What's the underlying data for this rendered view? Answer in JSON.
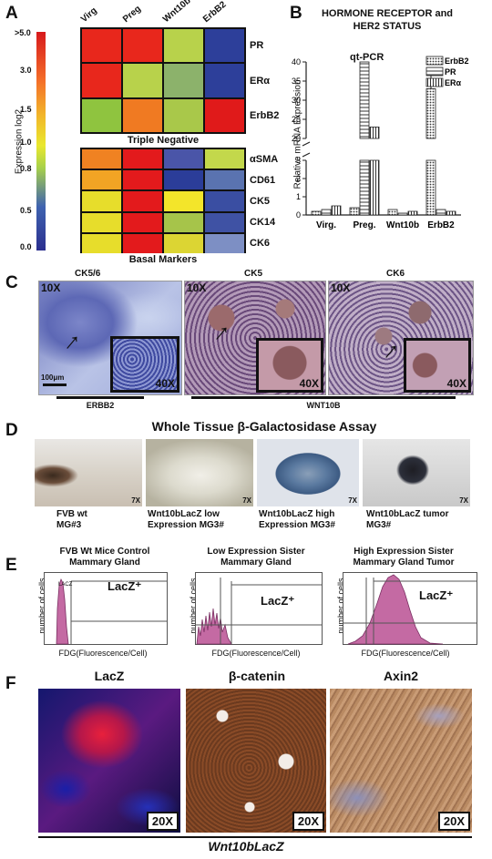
{
  "panel_labels": {
    "a": "A",
    "b": "B",
    "c": "C",
    "d": "D",
    "e": "E",
    "f": "F"
  },
  "panel_a": {
    "columns": [
      "Virg",
      "Preg",
      "Wnt10b",
      "ErbB2"
    ],
    "group1_rows": [
      "PR",
      "ERα",
      "ErbB2"
    ],
    "group1_title": "Triple Negative",
    "group2_rows": [
      "αSMA",
      "CD61",
      "CK5",
      "CK14",
      "CK6"
    ],
    "group2_title": "Basal Markers",
    "scale_label": "Expression log2",
    "scale_ticks": [
      ">5.0",
      "3.0",
      "1.5",
      "1.0",
      "0.8",
      "0.5",
      "0.0"
    ],
    "group1_colors": [
      [
        "#e8271c",
        "#e8271c",
        "#b8d24b",
        "#2d3f9a"
      ],
      [
        "#e8271c",
        "#b8d24b",
        "#8cb26b",
        "#2d3f9a"
      ],
      [
        "#8fc43f",
        "#f07a22",
        "#a9c84a",
        "#e01a1a"
      ]
    ],
    "group2_colors": [
      [
        "#f08222",
        "#e31a1c",
        "#4a55a8",
        "#c3d84b"
      ],
      [
        "#f2a424",
        "#e31a1c",
        "#2b3d99",
        "#5a73b0"
      ],
      [
        "#e7dd2b",
        "#e31a1c",
        "#f3e52a",
        "#3a4ea2"
      ],
      [
        "#e7dd2b",
        "#e31a1c",
        "#a6c44a",
        "#3f52a4"
      ],
      [
        "#e7dd2b",
        "#e31a1c",
        "#dcd533",
        "#7d8fc4"
      ]
    ]
  },
  "chart_data": {
    "type": "bar",
    "title": "HORMONE RECEPTOR and HER2 STATUS",
    "subtitle": "qt-PCR",
    "ylabel": "Relative mRNA Expression",
    "categories": [
      "Virg.",
      "Preg.",
      "Wnt10b",
      "ErbB2"
    ],
    "y_ticks": [
      "0",
      "1",
      "2",
      "3",
      "20",
      "25",
      "30",
      "35",
      "40"
    ],
    "axis_break": [
      3,
      20
    ],
    "ylim": [
      0,
      40
    ],
    "series": [
      {
        "name": "ErbB2",
        "values": [
          0.2,
          0.4,
          0.3,
          33
        ]
      },
      {
        "name": "PR",
        "values": [
          0.3,
          40,
          0.1,
          0.3
        ]
      },
      {
        "name": "ERα",
        "values": [
          0.5,
          23,
          0.2,
          0.2
        ]
      }
    ],
    "error_bar_erbb2": 5
  },
  "panel_c": {
    "titles": [
      "CK5/6",
      "CK5",
      "CK6"
    ],
    "mag_low": "10X",
    "mag_high": "40X",
    "scale_bar": "100μm",
    "group_erbb2": "ERBB2",
    "group_wnt10b": "WNT10B"
  },
  "panel_d": {
    "title": "Whole Tissue β-Galactosidase Assay",
    "mag": "7X",
    "captions": [
      [
        "FVB wt",
        "MG#3"
      ],
      [
        "Wnt10bLacZ low",
        "Expression MG3#"
      ],
      [
        "Wnt10bLacZ high",
        "Expression MG3#"
      ],
      [
        "Wnt10bLacZ tumor",
        "MG3#"
      ]
    ]
  },
  "panel_e": {
    "titles": [
      [
        "FVB Wt Mice Control",
        "Mammary Gland"
      ],
      [
        "Low Expression Sister",
        "Mammary Gland"
      ],
      [
        "High Expression Sister",
        "Mammary Gland Tumor"
      ]
    ],
    "ylabel": "number of cells",
    "xlabel": "FDG(Fluorescence/Cell)",
    "gate_label": "LacZ⁺",
    "small_gate": "LACZ"
  },
  "panel_f": {
    "titles": [
      "LacZ",
      "β-catenin",
      "Axin2"
    ],
    "mag": "20X",
    "footer": "Wnt10bLacZ"
  },
  "colors": {
    "accent": "#e31a1c",
    "histogram": "#c46aa3"
  }
}
